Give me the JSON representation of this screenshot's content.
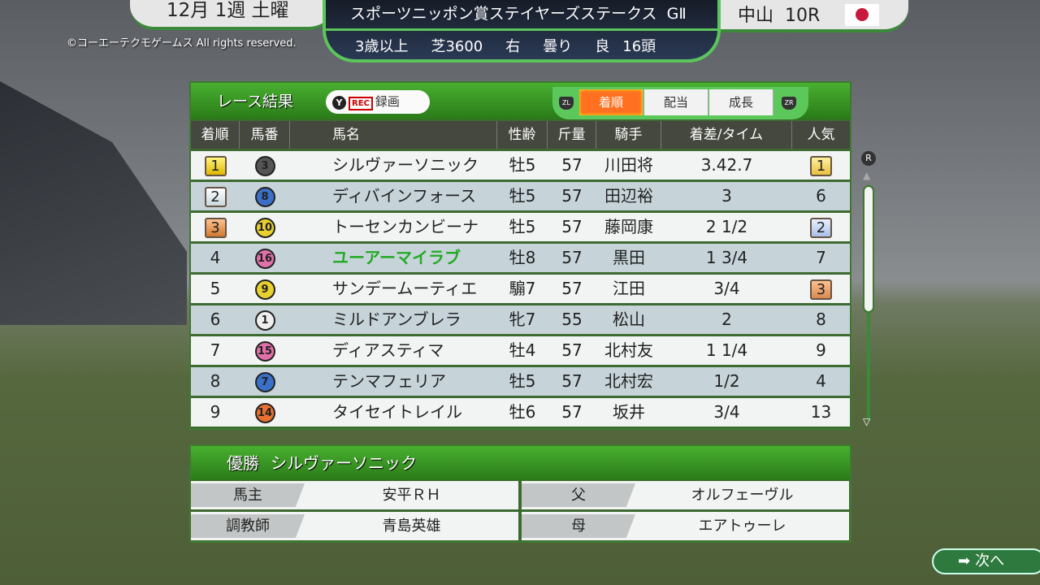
{
  "copyright": "©コーエーテクモゲームス All rights reserved.",
  "date": "12月 1週 土曜",
  "race": {
    "name": "スポーツニッポン賞ステイヤーズステークス",
    "grade": "GⅡ",
    "conditions": [
      "3歳以上",
      "芝3600",
      "右",
      "曇り",
      "良",
      "16頭"
    ],
    "venue": "中山",
    "race_no": "10R"
  },
  "panel": {
    "title": "レース結果",
    "record_button": "Y",
    "rec": "REC",
    "record_label": "録画",
    "tab_left": "ZL",
    "tab_right": "ZR",
    "tabs": [
      "着順",
      "配当",
      "成長"
    ],
    "active_tab": "着順"
  },
  "columns": [
    "着順",
    "馬番",
    "馬名",
    "性齢",
    "斤量",
    "騎手",
    "着差/タイム",
    "人気"
  ],
  "rows": [
    {
      "pos": "1",
      "num": "3",
      "name": "シルヴァーソニック",
      "sexage": "牡5",
      "weight": "57",
      "jockey": "川田将",
      "margin": "3.42.7",
      "pop": "1"
    },
    {
      "pos": "2",
      "num": "8",
      "name": "ディバインフォース",
      "sexage": "牡5",
      "weight": "57",
      "jockey": "田辺裕",
      "margin": "3",
      "pop": "6"
    },
    {
      "pos": "3",
      "num": "10",
      "name": "トーセンカンビーナ",
      "sexage": "牡5",
      "weight": "57",
      "jockey": "藤岡康",
      "margin": "2 1/2",
      "pop": "2"
    },
    {
      "pos": "4",
      "num": "16",
      "name": "ユーアーマイラブ",
      "sexage": "牡8",
      "weight": "57",
      "jockey": "黒田",
      "margin": "1 3/4",
      "pop": "7"
    },
    {
      "pos": "5",
      "num": "9",
      "name": "サンデームーティエ",
      "sexage": "騸7",
      "weight": "57",
      "jockey": "江田",
      "margin": "3/4",
      "pop": "3"
    },
    {
      "pos": "6",
      "num": "1",
      "name": "ミルドアンブレラ",
      "sexage": "牝7",
      "weight": "55",
      "jockey": "松山",
      "margin": "2",
      "pop": "8"
    },
    {
      "pos": "7",
      "num": "15",
      "name": "ディアスティマ",
      "sexage": "牡4",
      "weight": "57",
      "jockey": "北村友",
      "margin": "1 1/4",
      "pop": "9"
    },
    {
      "pos": "8",
      "num": "7",
      "name": "テンマフェリア",
      "sexage": "牡5",
      "weight": "57",
      "jockey": "北村宏",
      "margin": "1/2",
      "pop": "4"
    },
    {
      "pos": "9",
      "num": "14",
      "name": "タイセイトレイル",
      "sexage": "牡6",
      "weight": "57",
      "jockey": "坂井",
      "margin": "3/4",
      "pop": "13"
    }
  ],
  "winner": {
    "label": "優勝",
    "name": "シルヴァーソニック",
    "owner_label": "馬主",
    "owner": "安平ＲＨ",
    "trainer_label": "調教師",
    "trainer": "青島英雄",
    "sire_label": "父",
    "sire": "オルフェーヴル",
    "dam_label": "母",
    "dam": "エアトゥーレ"
  },
  "scroll_hint": "R",
  "next_label": "次へ",
  "colors": {
    "gate": {
      "1": "#eeeeee",
      "3": "#555555",
      "7": "#3a70c8",
      "8": "#3a70c8",
      "9": "#e8d030",
      "10": "#e8d030",
      "14": "#e87030",
      "15": "#e070a8",
      "16": "#e070a8"
    },
    "highlight_name": "#22aa22",
    "accent": "#4cb848"
  }
}
